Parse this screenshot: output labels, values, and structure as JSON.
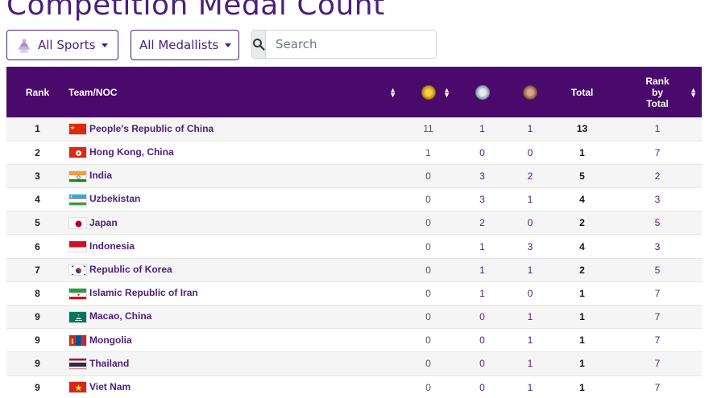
{
  "page": {
    "title": "Competition Medal Count"
  },
  "filters": {
    "sports_label": "All Sports",
    "medallists_label": "All Medallists",
    "search_placeholder": "Search"
  },
  "table": {
    "headers": {
      "rank": "Rank",
      "team": "Team/NOC",
      "total": "Total",
      "rank_by_total_1": "Rank",
      "rank_by_total_2": "by",
      "rank_by_total_3": "Total"
    },
    "rows": [
      {
        "rank": "1",
        "team": "People's Republic of China",
        "flag": "china",
        "gold": "11",
        "silver": "1",
        "bronze": "1",
        "total": "13",
        "rank_total": "1"
      },
      {
        "rank": "2",
        "team": "Hong Kong, China",
        "flag": "hong-kong",
        "gold": "1",
        "silver": "0",
        "bronze": "0",
        "total": "1",
        "rank_total": "7"
      },
      {
        "rank": "3",
        "team": "India",
        "flag": "india",
        "gold": "0",
        "silver": "3",
        "bronze": "2",
        "total": "5",
        "rank_total": "2"
      },
      {
        "rank": "4",
        "team": "Uzbekistan",
        "flag": "uzbekistan",
        "gold": "0",
        "silver": "3",
        "bronze": "1",
        "total": "4",
        "rank_total": "3"
      },
      {
        "rank": "5",
        "team": "Japan",
        "flag": "japan",
        "gold": "0",
        "silver": "2",
        "bronze": "0",
        "total": "2",
        "rank_total": "5"
      },
      {
        "rank": "6",
        "team": "Indonesia",
        "flag": "indonesia",
        "gold": "0",
        "silver": "1",
        "bronze": "3",
        "total": "4",
        "rank_total": "3"
      },
      {
        "rank": "7",
        "team": "Republic of Korea",
        "flag": "korea",
        "gold": "0",
        "silver": "1",
        "bronze": "1",
        "total": "2",
        "rank_total": "5"
      },
      {
        "rank": "8",
        "team": "Islamic Republic of Iran",
        "flag": "iran",
        "gold": "0",
        "silver": "1",
        "bronze": "0",
        "total": "1",
        "rank_total": "7"
      },
      {
        "rank": "9",
        "team": "Macao, China",
        "flag": "macao",
        "gold": "0",
        "silver": "0",
        "bronze": "1",
        "total": "1",
        "rank_total": "7"
      },
      {
        "rank": "9",
        "team": "Mongolia",
        "flag": "mongolia",
        "gold": "0",
        "silver": "0",
        "bronze": "1",
        "total": "1",
        "rank_total": "7"
      },
      {
        "rank": "9",
        "team": "Thailand",
        "flag": "thailand",
        "gold": "0",
        "silver": "0",
        "bronze": "1",
        "total": "1",
        "rank_total": "7"
      },
      {
        "rank": "9",
        "team": "Viet Nam",
        "flag": "viet-nam",
        "gold": "0",
        "silver": "0",
        "bronze": "1",
        "total": "1",
        "rank_total": "7"
      }
    ]
  },
  "icons": {
    "sport_icon": "sport-logo-icon",
    "search_icon": "search-icon",
    "gold": "gold-medal-icon",
    "silver": "silver-medal-icon",
    "bronze": "bronze-medal-icon"
  },
  "colors": {
    "brand": "#4a0a6b",
    "accent": "#4b1f7a"
  }
}
